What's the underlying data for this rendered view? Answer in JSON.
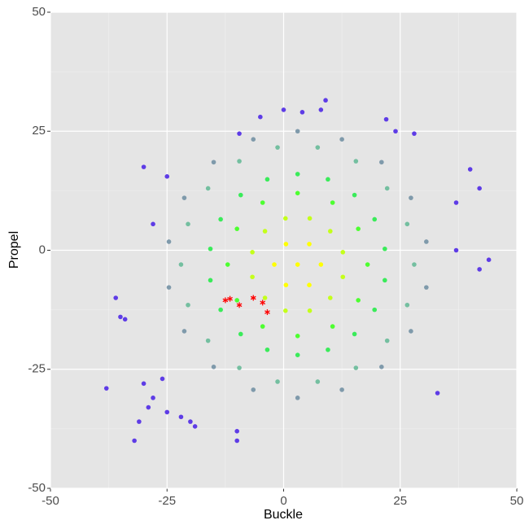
{
  "chart_data": {
    "type": "scatter",
    "xlabel": "Buckle",
    "ylabel": "Propel",
    "xlim": [
      -50,
      50
    ],
    "ylim": [
      -50,
      50
    ],
    "xticks": [
      -50,
      -25,
      0,
      25,
      50
    ],
    "yticks": [
      -50,
      -25,
      0,
      25,
      50
    ],
    "grid": true,
    "minor_grid": true,
    "background": "#e5e5e5",
    "series": [
      {
        "color": "#5e3ce6",
        "marker": "circle",
        "x": [
          -38,
          -32,
          -31,
          -30,
          -30,
          -28,
          -35,
          -34,
          -36,
          -29,
          -28,
          -25,
          -22,
          -20,
          -19,
          -10,
          -10,
          44,
          42,
          42,
          40,
          33,
          9,
          8,
          4,
          0,
          -5,
          28,
          24,
          22,
          -9.5,
          37,
          37,
          -25,
          -26
        ],
        "y": [
          -29,
          -40,
          -36,
          -28,
          17.5,
          5.5,
          -14,
          -14.5,
          -10,
          -33,
          -31,
          -34,
          -35,
          -36,
          -37,
          -38,
          -40,
          -2,
          -4,
          13,
          17,
          -30,
          31.5,
          29.5,
          29,
          29.5,
          28,
          24.5,
          25,
          27.5,
          24.5,
          10,
          0,
          15.5,
          -27
        ]
      },
      {
        "color": "#7f9aab",
        "marker": "circle",
        "x": [
          30.6,
          27.3,
          21,
          12.5,
          3,
          -6.5,
          -15,
          -21.3,
          -24.6,
          -24.6,
          -21.3,
          -15,
          -6.5,
          3,
          12.5,
          21,
          27.3,
          30.6
        ],
        "y": [
          1.8,
          11,
          18.5,
          23.3,
          25,
          23.3,
          18.5,
          11,
          1.8,
          -7.8,
          -17,
          -24.5,
          -29.3,
          -31,
          -29.3,
          -24.5,
          -17,
          -7.8
        ]
      },
      {
        "color": "#74bfa0",
        "marker": "circle",
        "x": [
          28,
          26.5,
          22.2,
          15.5,
          7.3,
          -1.3,
          -9.5,
          -16.2,
          -20.5,
          -22,
          -20.5,
          -16.2,
          -9.5,
          -1.3,
          7.3,
          15.5,
          22.2,
          26.5
        ],
        "y": [
          -3,
          5.5,
          13,
          18.7,
          21.6,
          21.6,
          18.7,
          13,
          5.5,
          -3,
          -11.5,
          -19,
          -24.7,
          -27.6,
          -27.6,
          -24.7,
          -19,
          -11.5
        ]
      },
      {
        "color": "#3aeb5a",
        "marker": "circle",
        "x": [
          21.7,
          19.5,
          15.2,
          9.5,
          3,
          -3.5,
          -9.2,
          -13.5,
          -15.7,
          -15.7,
          -13.5,
          -9.2,
          -3.5,
          3,
          9.5,
          15.2,
          19.5,
          21.7
        ],
        "y": [
          0.3,
          6.5,
          11.6,
          14.9,
          16,
          14.9,
          11.6,
          6.5,
          0.3,
          -6.3,
          -12.5,
          -17.6,
          -20.9,
          -22,
          -20.9,
          -17.6,
          -12.5,
          -6.3
        ]
      },
      {
        "color": "#4dff30",
        "marker": "circle",
        "x": [
          18,
          16,
          10.5,
          3,
          -4.5,
          -10,
          -12,
          -10,
          -4.5,
          3,
          10.5,
          16
        ],
        "y": [
          -3,
          4.5,
          10,
          12,
          10,
          4.5,
          -3,
          -10.5,
          -16,
          -18,
          -16,
          -10.5
        ]
      },
      {
        "color": "#c4ff1a",
        "marker": "circle",
        "x": [
          12.7,
          10,
          5.6,
          0.4,
          -4,
          -6.7,
          -6.7,
          -4,
          0.4,
          5.6,
          10,
          12.7
        ],
        "y": [
          -0.4,
          4,
          6.7,
          6.7,
          4,
          -0.4,
          -5.6,
          -10,
          -12.7,
          -12.7,
          -10,
          -5.6
        ]
      },
      {
        "color": "#ffff00",
        "marker": "circle",
        "x": [
          3,
          8,
          5.5,
          0.5,
          -2,
          0.5,
          5.5
        ],
        "y": [
          -3,
          -3,
          1.3,
          1.3,
          -3,
          -7.3,
          -7.3
        ]
      },
      {
        "color": "#ff0000",
        "marker": "asterisk",
        "x": [
          -12.5,
          -11.5,
          -9.5,
          -6.5,
          -4.5,
          -3.5
        ],
        "y": [
          -10.5,
          -10.2,
          -11.5,
          -10,
          -11,
          -13
        ]
      }
    ]
  }
}
